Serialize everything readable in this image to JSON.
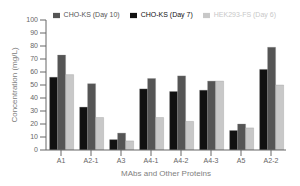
{
  "chart_data": {
    "type": "bar",
    "xlabel": "MAbs and Other Proteins",
    "ylabel": "Concentration (mg/L)",
    "categories": [
      "A1",
      "A2-1",
      "A3",
      "A4-1",
      "A4-2",
      "A4-3",
      "A5",
      "A2-2"
    ],
    "series": [
      {
        "name": "CHO-KS (Day 7)",
        "color": "#111111",
        "values": [
          56,
          33,
          8,
          47,
          45,
          46,
          15,
          62
        ]
      },
      {
        "name": "CHO-KS (Day 10)",
        "color": "#555555",
        "values": [
          73,
          51,
          13,
          55,
          57,
          53,
          20,
          79
        ]
      },
      {
        "name": "HEK293-FS (Day 6)",
        "color": "#c8c8c8",
        "values": [
          58,
          25,
          7,
          25,
          22,
          53,
          17,
          50
        ]
      }
    ],
    "ylim": [
      0,
      100
    ],
    "yticks": [
      0,
      10,
      20,
      30,
      40,
      50,
      60,
      70,
      80,
      90,
      100
    ],
    "legend": "upper right",
    "grid": false
  }
}
